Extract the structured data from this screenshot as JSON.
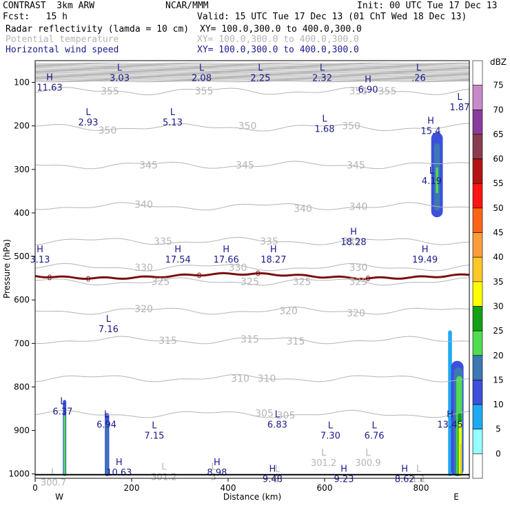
{
  "header": {
    "model": "CONTRAST  3km ARW",
    "org": "NCAR/MMM",
    "init": "Init: 00 UTC Tue 17 Dec 13",
    "fcst": "Fcst:   15 h",
    "valid": "Valid: 15 UTC Tue 17 Dec 13 (01 ChT Wed 18 Dec 13)",
    "field1": "Radar reflectivity (lamda = 10 cm)",
    "field1_xy": "XY= 100.0,300.0 to 400.0,300.0",
    "field2": "Potential temperature",
    "field2_xy": "XY= 100.0,300.0 to 400.0,300.0",
    "field3": "Horizontal wind speed",
    "field3_xy": "XY= 100.0,300.0 to 400.0,300.0"
  },
  "colors": {
    "theta": "#b4b4b4",
    "zero_line": "#7a0e0e",
    "navy": "#1a1a8c"
  },
  "chart_data": {
    "type": "heatmap",
    "xlabel": "Distance (km)",
    "ylabel": "Pressure (hPa)",
    "xlim": [
      0,
      900
    ],
    "ylim": [
      1010,
      50
    ],
    "x_ticks": [
      "0",
      "200",
      "400",
      "600",
      "800"
    ],
    "x_tick_values": [
      0,
      200,
      400,
      600,
      800
    ],
    "y_ticks": [
      "100",
      "200",
      "300",
      "400",
      "500",
      "600",
      "700",
      "800",
      "900",
      "1000"
    ],
    "y_tick_values": [
      100,
      200,
      300,
      400,
      500,
      600,
      700,
      800,
      900,
      1000
    ],
    "west_label": "W",
    "east_label": "E",
    "colorbar": {
      "unit": "dBZ",
      "levels": [
        "75",
        "70",
        "65",
        "60",
        "55",
        "50",
        "45",
        "40",
        "35",
        "30",
        "25",
        "20",
        "15",
        "10",
        "5",
        "0"
      ],
      "colors": [
        "#ffffff",
        "#c88ac8",
        "#8a3c9c",
        "#8c3c50",
        "#b41414",
        "#ff1414",
        "#ff6414",
        "#ff9c3c",
        "#ffc828",
        "#ffff00",
        "#14a014",
        "#50dc50",
        "#3c78b4",
        "#3c50dc",
        "#1eaaf0",
        "#96ffff",
        "#ffffff"
      ]
    },
    "theta_labels": [
      {
        "x": 155,
        "p": 120,
        "t": "355"
      },
      {
        "x": 350,
        "p": 120,
        "t": "355"
      },
      {
        "x": 670,
        "p": 120,
        "t": "355"
      },
      {
        "x": 730,
        "p": 120,
        "t": "355"
      },
      {
        "x": 150,
        "p": 210,
        "t": "350"
      },
      {
        "x": 440,
        "p": 200,
        "t": "350"
      },
      {
        "x": 655,
        "p": 200,
        "t": "350"
      },
      {
        "x": 235,
        "p": 290,
        "t": "345"
      },
      {
        "x": 435,
        "p": 290,
        "t": "345"
      },
      {
        "x": 665,
        "p": 290,
        "t": "345"
      },
      {
        "x": 225,
        "p": 380,
        "t": "340"
      },
      {
        "x": 555,
        "p": 390,
        "t": "340"
      },
      {
        "x": 670,
        "p": 385,
        "t": "340"
      },
      {
        "x": 265,
        "p": 465,
        "t": "335"
      },
      {
        "x": 485,
        "p": 465,
        "t": "335"
      },
      {
        "x": 655,
        "p": 465,
        "t": "335"
      },
      {
        "x": 225,
        "p": 525,
        "t": "330"
      },
      {
        "x": 420,
        "p": 525,
        "t": "330"
      },
      {
        "x": 670,
        "p": 525,
        "t": "330"
      },
      {
        "x": 260,
        "p": 558,
        "t": "325"
      },
      {
        "x": 445,
        "p": 558,
        "t": "325"
      },
      {
        "x": 553,
        "p": 558,
        "t": "325"
      },
      {
        "x": 670,
        "p": 558,
        "t": "325"
      },
      {
        "x": 225,
        "p": 620,
        "t": "320"
      },
      {
        "x": 525,
        "p": 625,
        "t": "320"
      },
      {
        "x": 665,
        "p": 630,
        "t": "320"
      },
      {
        "x": 275,
        "p": 693,
        "t": "315"
      },
      {
        "x": 445,
        "p": 690,
        "t": "315"
      },
      {
        "x": 540,
        "p": 695,
        "t": "315"
      },
      {
        "x": 425,
        "p": 780,
        "t": "310"
      },
      {
        "x": 480,
        "p": 780,
        "t": "310"
      },
      {
        "x": 475,
        "p": 860,
        "t": "305"
      },
      {
        "x": 520,
        "p": 865,
        "t": "305"
      }
    ],
    "zero_isotherm_labels": [
      {
        "x": 30,
        "t": "0"
      },
      {
        "x": 110,
        "t": "0"
      },
      {
        "x": 340,
        "t": "0"
      },
      {
        "x": 462,
        "t": "0"
      },
      {
        "x": 690,
        "t": "0"
      }
    ],
    "extrema": [
      {
        "x": 30,
        "p": 95,
        "k": "H",
        "v": "11.63",
        "c": "navy"
      },
      {
        "x": 175,
        "p": 73,
        "k": "L",
        "v": "3.03",
        "c": "navy"
      },
      {
        "x": 345,
        "p": 73,
        "k": "L",
        "v": "2.08",
        "c": "navy"
      },
      {
        "x": 467,
        "p": 73,
        "k": "L",
        "v": "2.25",
        "c": "navy"
      },
      {
        "x": 595,
        "p": 73,
        "k": "L",
        "v": "2.32",
        "c": "navy"
      },
      {
        "x": 795,
        "p": 73,
        "k": "L",
        "v": ".26",
        "c": "navy"
      },
      {
        "x": 690,
        "p": 100,
        "k": "H",
        "v": "6.90",
        "c": "navy"
      },
      {
        "x": 880,
        "p": 140,
        "k": "L",
        "v": "1.87",
        "c": "navy"
      },
      {
        "x": 110,
        "p": 175,
        "k": "L",
        "v": "2.93",
        "c": "navy"
      },
      {
        "x": 285,
        "p": 175,
        "k": "L",
        "v": "5.13",
        "c": "navy"
      },
      {
        "x": 600,
        "p": 190,
        "k": "L",
        "v": "1.68",
        "c": "navy"
      },
      {
        "x": 820,
        "p": 195,
        "k": "H",
        "v": "15.4",
        "c": "navy"
      },
      {
        "x": 822,
        "p": 310,
        "k": "L",
        "v": "4.19",
        "c": "navy"
      },
      {
        "x": 660,
        "p": 450,
        "k": "H",
        "v": "18.28",
        "c": "navy"
      },
      {
        "x": 10,
        "p": 490,
        "k": "H",
        "v": "3.13",
        "c": "navy"
      },
      {
        "x": 296,
        "p": 490,
        "k": "H",
        "v": "17.54",
        "c": "navy"
      },
      {
        "x": 396,
        "p": 490,
        "k": "H",
        "v": "17.66",
        "c": "navy"
      },
      {
        "x": 494,
        "p": 490,
        "k": "H",
        "v": "18.27",
        "c": "navy"
      },
      {
        "x": 808,
        "p": 490,
        "k": "H",
        "v": "19.49",
        "c": "navy"
      },
      {
        "x": 152,
        "p": 650,
        "k": "L",
        "v": "7.16",
        "c": "navy"
      },
      {
        "x": 57,
        "p": 840,
        "k": "L",
        "v": "6.37",
        "c": "navy"
      },
      {
        "x": 148,
        "p": 870,
        "k": "L",
        "v": "6.94",
        "c": "navy"
      },
      {
        "x": 247,
        "p": 895,
        "k": "L",
        "v": "7.15",
        "c": "navy"
      },
      {
        "x": 502,
        "p": 870,
        "k": "L",
        "v": "6.83",
        "c": "navy"
      },
      {
        "x": 612,
        "p": 895,
        "k": "L",
        "v": "7.30",
        "c": "navy"
      },
      {
        "x": 703,
        "p": 895,
        "k": "L",
        "v": "6.76",
        "c": "navy"
      },
      {
        "x": 860,
        "p": 870,
        "k": "H",
        "v": "13.45",
        "c": "navy"
      },
      {
        "x": 174,
        "p": 980,
        "k": "H",
        "v": "10.63",
        "c": "navy"
      },
      {
        "x": 377,
        "p": 980,
        "k": "H",
        "v": "8.98",
        "c": "navy"
      },
      {
        "x": 492,
        "p": 995,
        "k": "H",
        "v": "9.48",
        "c": "navy"
      },
      {
        "x": 640,
        "p": 995,
        "k": "H",
        "v": "9.23",
        "c": "navy"
      },
      {
        "x": 766,
        "p": 995,
        "k": "H",
        "v": "8.62",
        "c": "navy"
      },
      {
        "x": 38,
        "p": 1003,
        "k": "L",
        "v": "300.7",
        "c": "gray"
      },
      {
        "x": 267,
        "p": 990,
        "k": "L",
        "v": "301.2",
        "c": "gray"
      },
      {
        "x": 370,
        "p": 990,
        "k": "L",
        "v": "3",
        "c": "gray"
      },
      {
        "x": 502,
        "p": 995,
        "k": "L",
        "v": "1",
        "c": "gray"
      },
      {
        "x": 598,
        "p": 958,
        "k": "L",
        "v": "301.2",
        "c": "gray"
      },
      {
        "x": 690,
        "p": 958,
        "k": "L",
        "v": "300.9",
        "c": "gray"
      },
      {
        "x": 795,
        "p": 995,
        "k": "L",
        "v": "1.1",
        "c": "gray"
      }
    ],
    "reflectivity_cells": [
      {
        "x": 61,
        "w": 7,
        "p_top": 830,
        "p_bot": 1005,
        "dbz": 10
      },
      {
        "x": 61,
        "w": 4,
        "p_top": 865,
        "p_bot": 1005,
        "dbz": 20
      },
      {
        "x": 149,
        "w": 9,
        "p_top": 860,
        "p_bot": 1005,
        "dbz": 10
      },
      {
        "x": 149,
        "w": 5,
        "p_top": 880,
        "p_bot": 1005,
        "dbz": 15
      },
      {
        "x": 833,
        "w": 24,
        "p_top": 215,
        "p_bot": 410,
        "dbz": 10
      },
      {
        "x": 833,
        "w": 12,
        "p_top": 240,
        "p_bot": 395,
        "dbz": 15
      },
      {
        "x": 833,
        "w": 5,
        "p_top": 295,
        "p_bot": 355,
        "dbz": 20
      },
      {
        "x": 860,
        "w": 8,
        "p_top": 670,
        "p_bot": 1005,
        "dbz": 5
      },
      {
        "x": 875,
        "w": 26,
        "p_top": 740,
        "p_bot": 1005,
        "dbz": 10
      },
      {
        "x": 877,
        "w": 18,
        "p_top": 755,
        "p_bot": 1005,
        "dbz": 15
      },
      {
        "x": 879,
        "w": 12,
        "p_top": 775,
        "p_bot": 1005,
        "dbz": 20
      },
      {
        "x": 880,
        "w": 8,
        "p_top": 860,
        "p_bot": 1005,
        "dbz": 25
      },
      {
        "x": 881,
        "w": 6,
        "p_top": 880,
        "p_bot": 1005,
        "dbz": 30
      },
      {
        "x": 882,
        "w": 3,
        "p_top": 930,
        "p_bot": 1005,
        "dbz": 35
      }
    ]
  }
}
